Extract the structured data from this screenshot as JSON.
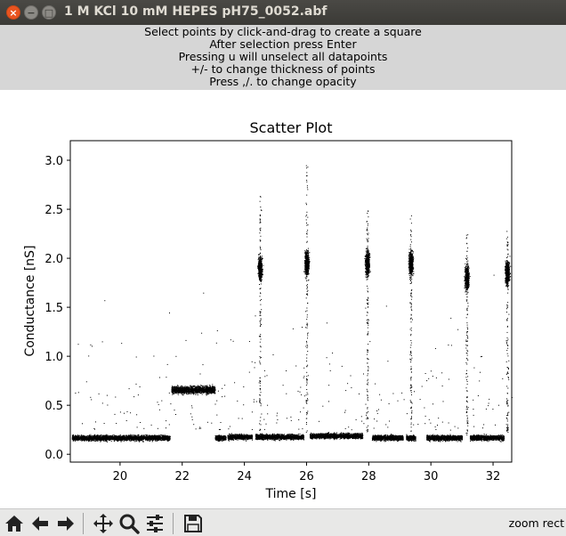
{
  "window": {
    "title": "1 M KCl 10 mM HEPES  pH75_0052.abf",
    "close_glyph": "×",
    "minimize_glyph": "−",
    "maximize_glyph": "□"
  },
  "instructions": [
    "Select points by click-and-drag to create a square",
    "After selection press Enter",
    "Pressing u will unselect all datapoints",
    "+/- to change thickness of points",
    "Press ,/. to change opacity"
  ],
  "toolbar": {
    "buttons": [
      {
        "name": "home-icon"
      },
      {
        "name": "back-arrow-icon"
      },
      {
        "name": "forward-arrow-icon"
      },
      {
        "name": "pan-move-icon"
      },
      {
        "name": "zoom-magnifier-icon"
      },
      {
        "name": "configure-subplots-icon"
      },
      {
        "name": "save-floppy-icon"
      }
    ],
    "status": "zoom rect"
  },
  "chart_data": {
    "type": "scatter",
    "title": "Scatter Plot",
    "xlabel": "Time [s]",
    "ylabel": "Conductance [nS]",
    "xlim": [
      18.4,
      32.6
    ],
    "ylim": [
      -0.08,
      3.2
    ],
    "xticks": [
      20,
      22,
      24,
      26,
      28,
      30,
      32
    ],
    "yticks": [
      0.0,
      0.5,
      1.0,
      1.5,
      2.0,
      2.5,
      3.0
    ],
    "point_color": "#000000",
    "grid": false,
    "baseline_segments": [
      {
        "x": [
          18.45,
          21.6
        ],
        "y": 0.17
      },
      {
        "x": [
          23.05,
          23.4
        ],
        "y": 0.17
      },
      {
        "x": [
          23.45,
          24.25
        ],
        "y": 0.18
      },
      {
        "x": [
          24.35,
          25.9
        ],
        "y": 0.18
      },
      {
        "x": [
          26.1,
          27.8
        ],
        "y": 0.19
      },
      {
        "x": [
          28.1,
          29.1
        ],
        "y": 0.17
      },
      {
        "x": [
          29.2,
          29.5
        ],
        "y": 0.17
      },
      {
        "x": [
          29.85,
          31.0
        ],
        "y": 0.17
      },
      {
        "x": [
          31.25,
          32.35
        ],
        "y": 0.17
      }
    ],
    "elevated_segments": [
      {
        "x": [
          21.65,
          23.05
        ],
        "y": 0.66
      }
    ],
    "spike_clusters": [
      {
        "x": 24.5,
        "y_center": 1.9,
        "y_top": 2.65
      },
      {
        "x": 26.0,
        "y_center": 1.95,
        "y_top": 2.95
      },
      {
        "x": 27.95,
        "y_center": 1.95,
        "y_top": 2.5
      },
      {
        "x": 29.35,
        "y_center": 1.95,
        "y_top": 2.45
      },
      {
        "x": 31.15,
        "y_center": 1.8,
        "y_top": 2.25
      },
      {
        "x": 32.45,
        "y_center": 1.85,
        "y_top": 2.3
      }
    ]
  }
}
